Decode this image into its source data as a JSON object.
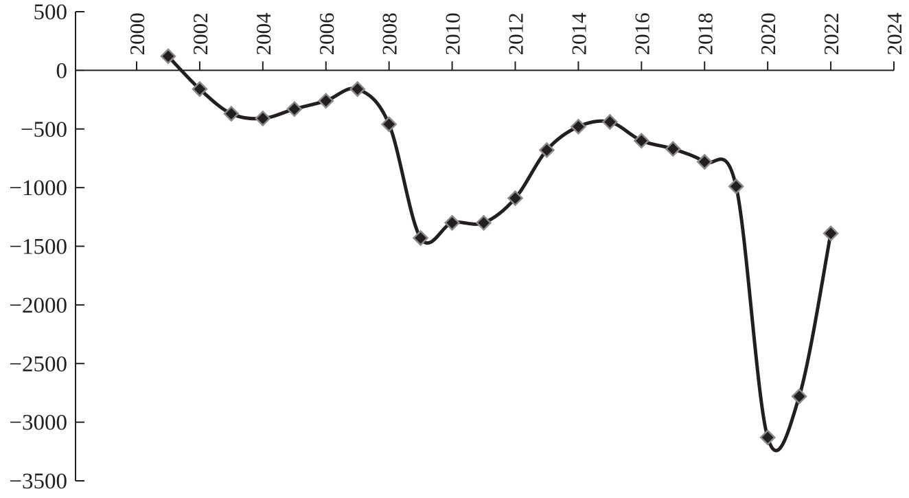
{
  "chart_data": {
    "type": "line",
    "title": "",
    "xlabel": "",
    "ylabel": "",
    "xlim": [
      2000,
      2024
    ],
    "ylim": [
      -3500,
      500
    ],
    "x_ticks": [
      2000,
      2002,
      2004,
      2006,
      2008,
      2010,
      2012,
      2014,
      2016,
      2018,
      2020,
      2022,
      2024
    ],
    "y_ticks": [
      500,
      0,
      -500,
      -1000,
      -1500,
      -2000,
      -2500,
      -3000,
      -3500
    ],
    "x_tick_labels": [
      "2000",
      "2002",
      "2004",
      "2006",
      "2008",
      "2010",
      "2012",
      "2014",
      "2016",
      "2018",
      "2020",
      "2022",
      "2024"
    ],
    "y_tick_labels": [
      "500",
      "0",
      "−500",
      "−1000",
      "−1500",
      "−2000",
      "−2500",
      "−3000",
      "−3500"
    ],
    "grid": false,
    "x_axis_position": "at y = 0, labels above, rotated vertical",
    "smooth": true,
    "marker": "diamond",
    "colors": {
      "line": "#231f20",
      "marker_fill": "#231f20",
      "marker_edge": "#8a8a8a"
    },
    "series": [
      {
        "x": [
          2001,
          2002,
          2003,
          2004,
          2005,
          2006,
          2007,
          2008,
          2009,
          2010,
          2011,
          2012,
          2013,
          2014,
          2015,
          2016,
          2017,
          2018,
          2019,
          2020,
          2021,
          2022
        ],
        "y": [
          120,
          -160,
          -370,
          -410,
          -330,
          -260,
          -160,
          -460,
          -1430,
          -1300,
          -1300,
          -1090,
          -680,
          -480,
          -440,
          -600,
          -670,
          -780,
          -990,
          -3130,
          -2780,
          -1390
        ]
      }
    ]
  }
}
